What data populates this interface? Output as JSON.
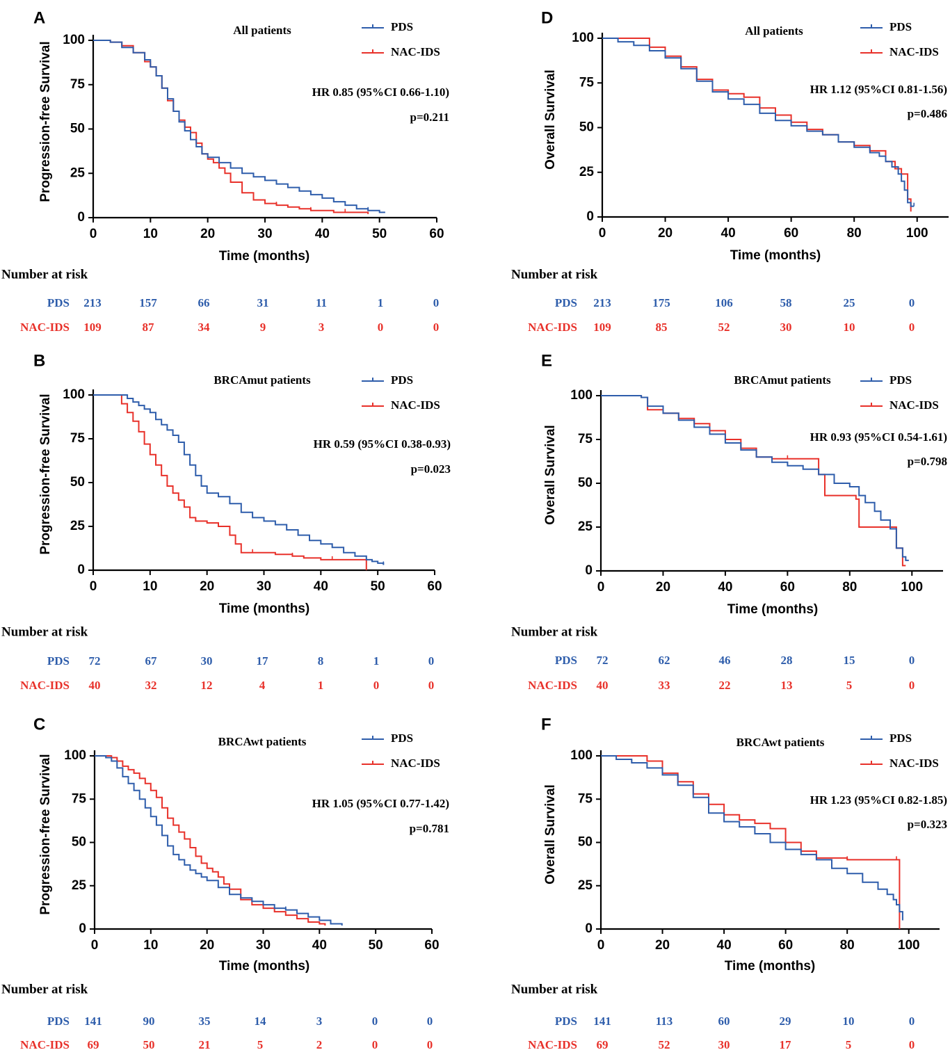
{
  "colors": {
    "pds": "#2e5dab",
    "nac": "#e8312a",
    "axis": "#000000"
  },
  "chart_data": [
    {
      "type": "line",
      "panel": "A",
      "title": "All patients",
      "xlabel": "Time (months)",
      "ylabel": "Progression-free Survival",
      "xlim": [
        0,
        60
      ],
      "ylim": [
        0,
        100
      ],
      "xticks": [
        "0",
        "10",
        "20",
        "30",
        "40",
        "50",
        "60"
      ],
      "yticks": [
        "0",
        "25",
        "50",
        "75",
        "100"
      ],
      "hr": "HR 0.85 (95%CI 0.66-1.10)",
      "p": "p=0.211",
      "series": [
        {
          "name": "PDS",
          "x": [
            0,
            3,
            5,
            7,
            9,
            10,
            11,
            12,
            13,
            14,
            15,
            16,
            17,
            18,
            19,
            20,
            22,
            24,
            26,
            28,
            30,
            32,
            34,
            36,
            38,
            40,
            42,
            44,
            46,
            48,
            50,
            51
          ],
          "values": [
            100,
            99,
            96,
            93,
            89,
            85,
            80,
            73,
            67,
            60,
            54,
            49,
            44,
            40,
            36,
            34,
            31,
            28,
            25,
            23,
            21,
            19,
            17,
            15,
            13,
            11,
            9,
            7,
            5,
            4,
            3,
            3
          ]
        },
        {
          "name": "NAC-IDS",
          "x": [
            0,
            3,
            5,
            7,
            9,
            10,
            11,
            12,
            13,
            14,
            15,
            16,
            17,
            18,
            19,
            20,
            21,
            22,
            23,
            24,
            26,
            28,
            30,
            32,
            34,
            36,
            38,
            40,
            42,
            44,
            46,
            48
          ],
          "values": [
            100,
            99,
            97,
            93,
            88,
            85,
            80,
            73,
            66,
            60,
            55,
            51,
            48,
            42,
            36,
            33,
            31,
            28,
            25,
            20,
            14,
            10,
            8,
            7,
            6,
            5,
            4,
            4,
            3,
            3,
            3,
            2
          ]
        }
      ],
      "risk": {
        "label": "Number at risk",
        "times": [
          "0",
          "10",
          "20",
          "30",
          "40",
          "50",
          "60"
        ],
        "rows": [
          {
            "name": "PDS",
            "values": [
              "213",
              "157",
              "66",
              "31",
              "11",
              "1",
              "0"
            ]
          },
          {
            "name": "NAC-IDS",
            "values": [
              "109",
              "87",
              "34",
              "9",
              "3",
              "0",
              "0"
            ]
          }
        ]
      }
    },
    {
      "type": "line",
      "panel": "B",
      "title": "BRCAmut patients",
      "xlabel": "Time (months)",
      "ylabel": "Progression-free Survival",
      "xlim": [
        0,
        60
      ],
      "ylim": [
        0,
        100
      ],
      "xticks": [
        "0",
        "10",
        "20",
        "30",
        "40",
        "50",
        "60"
      ],
      "yticks": [
        "0",
        "25",
        "50",
        "75",
        "100"
      ],
      "hr": "HR 0.59 (95%CI 0.38-0.93)",
      "p": "p=0.023",
      "series": [
        {
          "name": "PDS",
          "x": [
            0,
            6,
            7,
            8,
            9,
            10,
            11,
            12,
            13,
            14,
            15,
            16,
            17,
            18,
            19,
            20,
            22,
            24,
            26,
            28,
            30,
            32,
            34,
            36,
            38,
            40,
            42,
            44,
            46,
            48,
            49,
            50,
            51
          ],
          "values": [
            100,
            98,
            96,
            94,
            92,
            90,
            86,
            83,
            80,
            77,
            73,
            66,
            60,
            54,
            48,
            44,
            42,
            38,
            33,
            30,
            28,
            26,
            23,
            20,
            17,
            15,
            13,
            10,
            8,
            6,
            5,
            4,
            3
          ]
        },
        {
          "name": "NAC-IDS",
          "x": [
            0,
            5,
            6,
            7,
            8,
            9,
            10,
            11,
            12,
            13,
            14,
            15,
            16,
            17,
            18,
            20,
            22,
            24,
            25,
            26,
            28,
            30,
            32,
            35,
            37,
            40,
            42,
            45,
            48
          ],
          "values": [
            100,
            95,
            90,
            85,
            79,
            72,
            66,
            60,
            54,
            48,
            44,
            40,
            36,
            30,
            28,
            27,
            25,
            20,
            15,
            10,
            10,
            10,
            9,
            8,
            7,
            6,
            6,
            6,
            0
          ]
        }
      ],
      "risk": {
        "label": "Number at risk",
        "times": [
          "0",
          "10",
          "20",
          "30",
          "40",
          "50",
          "60"
        ],
        "rows": [
          {
            "name": "PDS",
            "values": [
              "72",
              "67",
              "30",
              "17",
              "8",
              "1",
              "0"
            ]
          },
          {
            "name": "NAC-IDS",
            "values": [
              "40",
              "32",
              "12",
              "4",
              "1",
              "0",
              "0"
            ]
          }
        ]
      }
    },
    {
      "type": "line",
      "panel": "C",
      "title": "BRCAwt  patients",
      "xlabel": "Time (months)",
      "ylabel": "Progression-free Survival",
      "xlim": [
        0,
        60
      ],
      "ylim": [
        0,
        100
      ],
      "xticks": [
        "0",
        "10",
        "20",
        "30",
        "40",
        "50",
        "60"
      ],
      "yticks": [
        "0",
        "25",
        "50",
        "75",
        "100"
      ],
      "hr": "HR 1.05 (95%CI 0.77-1.42)",
      "p": "p=0.781",
      "series": [
        {
          "name": "PDS",
          "x": [
            0,
            2,
            3,
            4,
            5,
            6,
            7,
            8,
            9,
            10,
            11,
            12,
            13,
            14,
            15,
            16,
            17,
            18,
            19,
            20,
            22,
            24,
            26,
            28,
            30,
            32,
            34,
            36,
            38,
            40,
            42,
            44
          ],
          "values": [
            100,
            99,
            97,
            93,
            88,
            84,
            80,
            75,
            70,
            65,
            60,
            54,
            48,
            43,
            40,
            37,
            34,
            32,
            30,
            28,
            24,
            20,
            18,
            16,
            14,
            12,
            11,
            9,
            7,
            5,
            3,
            2
          ]
        },
        {
          "name": "NAC-IDS",
          "x": [
            0,
            3,
            4,
            5,
            6,
            7,
            8,
            9,
            10,
            11,
            12,
            13,
            14,
            15,
            16,
            17,
            18,
            19,
            20,
            21,
            22,
            23,
            24,
            26,
            28,
            30,
            32,
            34,
            36,
            38,
            40,
            41
          ],
          "values": [
            100,
            99,
            97,
            94,
            92,
            90,
            87,
            84,
            80,
            76,
            70,
            64,
            60,
            56,
            52,
            47,
            42,
            38,
            35,
            33,
            30,
            26,
            23,
            17,
            14,
            12,
            10,
            8,
            6,
            4,
            3,
            2
          ]
        }
      ],
      "risk": {
        "label": "Number at risk",
        "times": [
          "0",
          "10",
          "20",
          "30",
          "40",
          "50",
          "60"
        ],
        "rows": [
          {
            "name": "PDS",
            "values": [
              "141",
              "90",
              "35",
              "14",
              "3",
              "0",
              "0"
            ]
          },
          {
            "name": "NAC-IDS",
            "values": [
              "69",
              "50",
              "21",
              "5",
              "2",
              "0",
              "0"
            ]
          }
        ]
      }
    },
    {
      "type": "line",
      "panel": "D",
      "title": "All patients",
      "xlabel": "Time (months)",
      "ylabel": "Overall Survival",
      "xlim": [
        0,
        110
      ],
      "ylim": [
        0,
        100
      ],
      "xticks": [
        "0",
        "20",
        "40",
        "60",
        "80",
        "100"
      ],
      "yticks": [
        "0",
        "25",
        "50",
        "75",
        "100"
      ],
      "hr": "HR 1.12 (95%CI 0.81-1.56)",
      "p": "p=0.486",
      "series": [
        {
          "name": "PDS",
          "x": [
            0,
            5,
            10,
            15,
            20,
            25,
            30,
            35,
            40,
            45,
            50,
            55,
            60,
            65,
            70,
            75,
            80,
            85,
            88,
            90,
            92,
            94,
            95,
            96,
            97,
            98,
            99
          ],
          "values": [
            100,
            98,
            96,
            93,
            89,
            83,
            76,
            70,
            66,
            63,
            58,
            54,
            51,
            48,
            46,
            42,
            39,
            36,
            34,
            31,
            28,
            24,
            20,
            15,
            8,
            6,
            6
          ]
        },
        {
          "name": "NAC-IDS",
          "x": [
            0,
            8,
            15,
            20,
            25,
            30,
            35,
            40,
            45,
            50,
            55,
            60,
            65,
            70,
            75,
            80,
            85,
            90,
            93,
            95,
            97,
            98
          ],
          "values": [
            100,
            100,
            95,
            90,
            84,
            77,
            71,
            69,
            67,
            61,
            57,
            53,
            49,
            46,
            42,
            40,
            37,
            31,
            27,
            24,
            10,
            3
          ]
        }
      ],
      "risk": {
        "label": "Number at risk",
        "times": [
          "0",
          "20",
          "40",
          "60",
          "80",
          "100"
        ],
        "rows": [
          {
            "name": "PDS",
            "values": [
              "213",
              "175",
              "106",
              "58",
              "25",
              "0"
            ]
          },
          {
            "name": "NAC-IDS",
            "values": [
              "109",
              "85",
              "52",
              "30",
              "10",
              "0"
            ]
          }
        ]
      }
    },
    {
      "type": "line",
      "panel": "E",
      "title": "BRCAmut patients",
      "xlabel": "Time (months)",
      "ylabel": "Overall Survival",
      "xlim": [
        0,
        110
      ],
      "ylim": [
        0,
        100
      ],
      "xticks": [
        "0",
        "20",
        "40",
        "60",
        "80",
        "100"
      ],
      "yticks": [
        "0",
        "25",
        "50",
        "75",
        "100"
      ],
      "hr": "HR 0.93 (95%CI 0.54-1.61)",
      "p": "p=0.798",
      "series": [
        {
          "name": "PDS",
          "x": [
            0,
            13,
            15,
            20,
            25,
            30,
            35,
            40,
            45,
            50,
            55,
            60,
            65,
            70,
            75,
            80,
            83,
            85,
            88,
            90,
            93,
            95,
            97,
            98,
            99
          ],
          "values": [
            100,
            99,
            94,
            90,
            86,
            82,
            78,
            73,
            69,
            65,
            62,
            60,
            58,
            55,
            50,
            48,
            43,
            39,
            34,
            29,
            24,
            13,
            8,
            6,
            6
          ]
        },
        {
          "name": "NAC-IDS",
          "x": [
            0,
            13,
            15,
            20,
            25,
            30,
            35,
            40,
            45,
            50,
            55,
            60,
            65,
            70,
            72,
            75,
            82,
            83,
            85,
            90,
            95,
            97,
            98
          ],
          "values": [
            100,
            99,
            92,
            90,
            87,
            84,
            80,
            75,
            70,
            65,
            64,
            64,
            64,
            55,
            43,
            43,
            41,
            25,
            25,
            25,
            13,
            3,
            3
          ]
        }
      ],
      "risk": {
        "label": "Number at risk",
        "times": [
          "0",
          "20",
          "40",
          "60",
          "80",
          "100"
        ],
        "rows": [
          {
            "name": "PDS",
            "values": [
              "72",
              "62",
              "46",
              "28",
              "15",
              "0"
            ]
          },
          {
            "name": "NAC-IDS",
            "values": [
              "40",
              "33",
              "22",
              "13",
              "5",
              "0"
            ]
          }
        ]
      }
    },
    {
      "type": "line",
      "panel": "F",
      "title": "BRCAwt  patients",
      "xlabel": "Time (months)",
      "ylabel": "Overall Survival",
      "xlim": [
        0,
        110
      ],
      "ylim": [
        0,
        100
      ],
      "xticks": [
        "0",
        "20",
        "40",
        "60",
        "80",
        "100"
      ],
      "yticks": [
        "0",
        "25",
        "50",
        "75",
        "100"
      ],
      "hr": "HR 1.23 (95%CI 0.82-1.85)",
      "p": "p=0.323",
      "series": [
        {
          "name": "PDS",
          "x": [
            0,
            5,
            10,
            15,
            20,
            25,
            30,
            35,
            40,
            45,
            50,
            55,
            60,
            65,
            70,
            75,
            80,
            85,
            90,
            93,
            95,
            96,
            97,
            98
          ],
          "values": [
            100,
            98,
            96,
            93,
            89,
            83,
            76,
            67,
            62,
            59,
            55,
            50,
            46,
            43,
            40,
            35,
            32,
            27,
            23,
            20,
            17,
            14,
            10,
            5
          ]
        },
        {
          "name": "NAC-IDS",
          "x": [
            0,
            8,
            15,
            20,
            25,
            30,
            35,
            40,
            45,
            50,
            55,
            60,
            65,
            70,
            80,
            90,
            95,
            96,
            97
          ],
          "values": [
            100,
            100,
            97,
            90,
            85,
            78,
            72,
            66,
            63,
            61,
            58,
            50,
            45,
            41,
            40,
            40,
            40,
            40,
            0
          ]
        }
      ],
      "risk": {
        "label": "Number at risk",
        "times": [
          "0",
          "20",
          "40",
          "60",
          "80",
          "100"
        ],
        "rows": [
          {
            "name": "PDS",
            "values": [
              "141",
              "113",
              "60",
              "29",
              "10",
              "0"
            ]
          },
          {
            "name": "NAC-IDS",
            "values": [
              "69",
              "52",
              "30",
              "17",
              "5",
              "0"
            ]
          }
        ]
      }
    }
  ]
}
